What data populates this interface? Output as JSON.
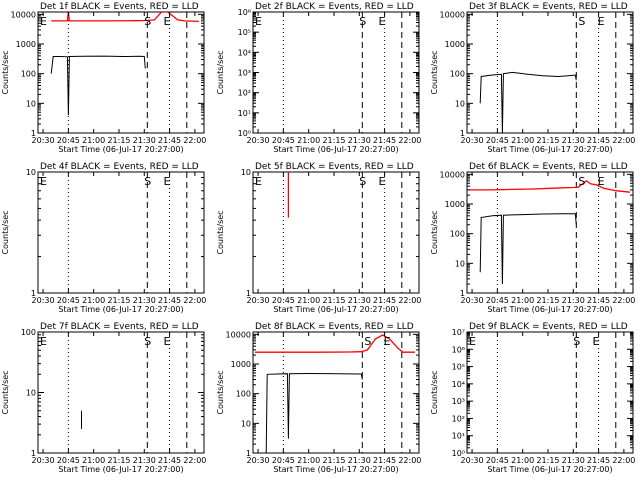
{
  "colors": {
    "events": "#000000",
    "lld": "#ff0000",
    "background": "#ffffff"
  },
  "x_ticks": [
    "20:30",
    "20:45",
    "21:00",
    "21:15",
    "21:30",
    "21:45",
    "22:00"
  ],
  "x_tick_hours": [
    20.5,
    20.75,
    21.0,
    21.25,
    21.5,
    21.75,
    22.0
  ],
  "xlabel": "Start Time (06-Jul-17 20:27:00)",
  "ylabel": "Counts/sec",
  "chart_data": [
    {
      "type": "line",
      "panel": 1,
      "title": "Det 1f BLACK = Events, RED = LLD",
      "xlim": [
        20.45,
        22.09
      ],
      "ylim": [
        1,
        12000
      ],
      "y_scale": "log",
      "y_ticks": [
        {
          "v": 1,
          "label": "1"
        },
        {
          "v": 10,
          "label": "10"
        },
        {
          "v": 100,
          "label": "100"
        },
        {
          "v": 1000,
          "label": "1000"
        },
        {
          "v": 10000,
          "label": "10000"
        }
      ],
      "dotted_lines": [
        20.75,
        21.75
      ],
      "dashed_lines": [
        21.53,
        21.92
      ],
      "markers": [
        {
          "text": "E",
          "x": 20.47
        },
        {
          "text": "S",
          "x": 21.5
        },
        {
          "text": "E",
          "x": 21.69
        }
      ],
      "series": [
        {
          "color": "events",
          "points": [
            [
              20.58,
              100
            ],
            [
              20.6,
              380
            ],
            [
              20.67,
              380
            ],
            [
              20.74,
              370
            ],
            [
              20.75,
              4
            ],
            [
              20.76,
              380
            ],
            [
              20.9,
              385
            ],
            [
              21.1,
              390
            ],
            [
              21.3,
              380
            ],
            [
              21.45,
              385
            ],
            [
              21.5,
              380
            ],
            [
              21.51,
              150
            ]
          ]
        },
        {
          "color": "lld",
          "points": [
            [
              20.58,
              6000
            ],
            [
              20.74,
              6000
            ],
            [
              20.75,
              12000
            ],
            [
              20.76,
              6000
            ],
            [
              21.1,
              6000
            ],
            [
              21.4,
              6100
            ],
            [
              21.52,
              6200
            ],
            [
              21.6,
              6500
            ],
            [
              21.67,
              12000
            ],
            [
              21.73,
              12000
            ],
            [
              21.78,
              9000
            ],
            [
              21.83,
              6500
            ],
            [
              21.9,
              6000
            ],
            [
              22.04,
              5800
            ]
          ]
        }
      ]
    },
    {
      "type": "line",
      "panel": 2,
      "title": "Det 2f BLACK = Events, RED = LLD",
      "xlim": [
        20.45,
        22.09
      ],
      "ylim": [
        1,
        1000000
      ],
      "y_scale": "log",
      "y_ticks": [
        {
          "v": 1,
          "label": "10⁰"
        },
        {
          "v": 10,
          "label": "10¹"
        },
        {
          "v": 100,
          "label": "10²"
        },
        {
          "v": 1000,
          "label": "10³"
        },
        {
          "v": 10000,
          "label": "10⁴"
        },
        {
          "v": 100000,
          "label": "10⁵"
        },
        {
          "v": 1000000,
          "label": "10⁶"
        }
      ],
      "dotted_lines": [
        20.75,
        21.75
      ],
      "dashed_lines": [
        21.53,
        21.92
      ],
      "markers": [
        {
          "text": "E",
          "x": 20.47
        },
        {
          "text": "S",
          "x": 21.5
        },
        {
          "text": "E",
          "x": 21.69
        }
      ],
      "series": []
    },
    {
      "type": "line",
      "panel": 3,
      "title": "Det 3f BLACK = Events, RED = LLD",
      "xlim": [
        20.45,
        22.09
      ],
      "ylim": [
        1,
        12000
      ],
      "y_scale": "log",
      "y_ticks": [
        {
          "v": 1,
          "label": "1"
        },
        {
          "v": 10,
          "label": "10"
        },
        {
          "v": 100,
          "label": "100"
        },
        {
          "v": 1000,
          "label": "1000"
        },
        {
          "v": 10000,
          "label": "10000"
        }
      ],
      "dotted_lines": [
        20.75,
        21.75
      ],
      "dashed_lines": [
        21.53,
        21.92
      ],
      "markers": [
        {
          "text": "S",
          "x": 21.55
        },
        {
          "text": "E",
          "x": 21.74
        }
      ],
      "series": [
        {
          "color": "events",
          "points": [
            [
              20.58,
              10
            ],
            [
              20.59,
              80
            ],
            [
              20.7,
              90
            ],
            [
              20.79,
              95
            ],
            [
              20.8,
              1
            ],
            [
              20.81,
              100
            ],
            [
              20.9,
              110
            ],
            [
              21.05,
              95
            ],
            [
              21.2,
              85
            ],
            [
              21.35,
              80
            ],
            [
              21.45,
              85
            ],
            [
              21.52,
              90
            ],
            [
              21.53,
              60
            ]
          ]
        }
      ]
    },
    {
      "type": "line",
      "panel": 4,
      "title": "Det 4f BLACK = Events, RED = LLD",
      "xlim": [
        20.45,
        22.09
      ],
      "ylim": [
        1,
        10
      ],
      "y_scale": "log",
      "y_ticks": [
        {
          "v": 1,
          "label": "1"
        },
        {
          "v": 10,
          "label": "10"
        }
      ],
      "dotted_lines": [
        20.75,
        21.75
      ],
      "dashed_lines": [
        21.53,
        21.92
      ],
      "markers": [
        {
          "text": "E",
          "x": 20.47
        },
        {
          "text": "S",
          "x": 21.5
        },
        {
          "text": "E",
          "x": 21.69
        }
      ],
      "series": []
    },
    {
      "type": "line",
      "panel": 5,
      "title": "Det 5f BLACK = Events, RED = LLD",
      "xlim": [
        20.45,
        22.09
      ],
      "ylim": [
        1,
        10
      ],
      "y_scale": "log",
      "y_ticks": [
        {
          "v": 1,
          "label": "1"
        },
        {
          "v": 10,
          "label": "10"
        }
      ],
      "dotted_lines": [
        20.75,
        21.75
      ],
      "dashed_lines": [
        21.53,
        21.92
      ],
      "markers": [
        {
          "text": "E",
          "x": 20.47
        },
        {
          "text": "S",
          "x": 21.5
        },
        {
          "text": "E",
          "x": 21.69
        }
      ],
      "series": [
        {
          "color": "lld",
          "points": [
            [
              20.8,
              10
            ],
            [
              20.8,
              4.2
            ]
          ]
        }
      ]
    },
    {
      "type": "line",
      "panel": 6,
      "title": "Det 6f BLACK = Events, RED = LLD",
      "xlim": [
        20.45,
        22.09
      ],
      "ylim": [
        1,
        12000
      ],
      "y_scale": "log",
      "y_ticks": [
        {
          "v": 1,
          "label": "1"
        },
        {
          "v": 10,
          "label": "10"
        },
        {
          "v": 100,
          "label": "100"
        },
        {
          "v": 1000,
          "label": "1000"
        },
        {
          "v": 10000,
          "label": "10000"
        }
      ],
      "dotted_lines": [
        20.75,
        21.75
      ],
      "dashed_lines": [
        21.53,
        21.92
      ],
      "markers": [
        {
          "text": "S",
          "x": 21.55
        },
        {
          "text": "E",
          "x": 21.74
        }
      ],
      "series": [
        {
          "color": "events",
          "points": [
            [
              20.58,
              5
            ],
            [
              20.59,
              350
            ],
            [
              20.7,
              400
            ],
            [
              20.79,
              420
            ],
            [
              20.8,
              2
            ],
            [
              20.81,
              420
            ],
            [
              21.0,
              440
            ],
            [
              21.2,
              460
            ],
            [
              21.4,
              470
            ],
            [
              21.52,
              470
            ],
            [
              21.53,
              200
            ]
          ]
        },
        {
          "color": "lld",
          "points": [
            [
              20.47,
              3000
            ],
            [
              20.7,
              3000
            ],
            [
              20.9,
              3100
            ],
            [
              21.1,
              3200
            ],
            [
              21.3,
              3400
            ],
            [
              21.5,
              3600
            ],
            [
              21.55,
              3700
            ],
            [
              21.63,
              6000
            ],
            [
              21.67,
              4800
            ],
            [
              21.73,
              4400
            ],
            [
              21.8,
              3400
            ],
            [
              21.92,
              2800
            ],
            [
              22.06,
              2500
            ]
          ]
        }
      ]
    },
    {
      "type": "line",
      "panel": 7,
      "title": "Det 7f BLACK = Events, RED = LLD",
      "xlim": [
        20.45,
        22.09
      ],
      "ylim": [
        1,
        100
      ],
      "y_scale": "log",
      "y_ticks": [
        {
          "v": 1,
          "label": "1"
        },
        {
          "v": 10,
          "label": "10"
        },
        {
          "v": 100,
          "label": "100"
        }
      ],
      "dotted_lines": [
        20.75,
        21.75
      ],
      "dashed_lines": [
        21.53,
        21.92
      ],
      "markers": [
        {
          "text": "E",
          "x": 20.47
        },
        {
          "text": "S",
          "x": 21.5
        },
        {
          "text": "E",
          "x": 21.69
        }
      ],
      "series": [
        {
          "color": "events",
          "points": [
            [
              20.88,
              2.5
            ],
            [
              20.88,
              5
            ]
          ]
        }
      ]
    },
    {
      "type": "line",
      "panel": 8,
      "title": "Det 8f BLACK = Events, RED = LLD",
      "xlim": [
        20.45,
        22.09
      ],
      "ylim": [
        1,
        12000
      ],
      "y_scale": "log",
      "y_ticks": [
        {
          "v": 1,
          "label": "1"
        },
        {
          "v": 10,
          "label": "10"
        },
        {
          "v": 100,
          "label": "100"
        },
        {
          "v": 1000,
          "label": "1000"
        },
        {
          "v": 10000,
          "label": "10000"
        }
      ],
      "dotted_lines": [
        20.75,
        21.75
      ],
      "dashed_lines": [
        21.53,
        21.92
      ],
      "markers": [
        {
          "text": "S",
          "x": 21.55
        },
        {
          "text": "E",
          "x": 21.74
        }
      ],
      "series": [
        {
          "color": "events",
          "points": [
            [
              20.58,
              1
            ],
            [
              20.59,
              450
            ],
            [
              20.7,
              460
            ],
            [
              20.79,
              470
            ],
            [
              20.8,
              3
            ],
            [
              20.81,
              470
            ],
            [
              21.0,
              480
            ],
            [
              21.3,
              470
            ],
            [
              21.5,
              460
            ],
            [
              21.52,
              460
            ],
            [
              21.53,
              300
            ]
          ]
        },
        {
          "color": "lld",
          "points": [
            [
              20.47,
              2500
            ],
            [
              20.8,
              2500
            ],
            [
              21.1,
              2500
            ],
            [
              21.4,
              2550
            ],
            [
              21.52,
              2600
            ],
            [
              21.58,
              3000
            ],
            [
              21.66,
              7000
            ],
            [
              21.73,
              9500
            ],
            [
              21.8,
              7000
            ],
            [
              21.88,
              3500
            ],
            [
              21.93,
              2500
            ],
            [
              22.05,
              2500
            ]
          ]
        }
      ]
    },
    {
      "type": "line",
      "panel": 9,
      "title": "Det 9f BLACK = Events, RED = LLD",
      "xlim": [
        20.45,
        22.09
      ],
      "ylim": [
        1,
        10000000
      ],
      "y_scale": "log",
      "y_ticks": [
        {
          "v": 1,
          "label": "10⁰"
        },
        {
          "v": 10,
          "label": "10¹"
        },
        {
          "v": 100,
          "label": "10²"
        },
        {
          "v": 1000,
          "label": "10³"
        },
        {
          "v": 10000,
          "label": "10⁴"
        },
        {
          "v": 100000,
          "label": "10⁵"
        },
        {
          "v": 1000000,
          "label": "10⁶"
        },
        {
          "v": 10000000,
          "label": "10⁷"
        }
      ],
      "dotted_lines": [
        20.75,
        21.75
      ],
      "dashed_lines": [
        21.53,
        21.92
      ],
      "markers": [
        {
          "text": "E",
          "x": 20.47
        },
        {
          "text": "S",
          "x": 21.5
        },
        {
          "text": "E",
          "x": 21.69
        }
      ],
      "series": []
    }
  ]
}
